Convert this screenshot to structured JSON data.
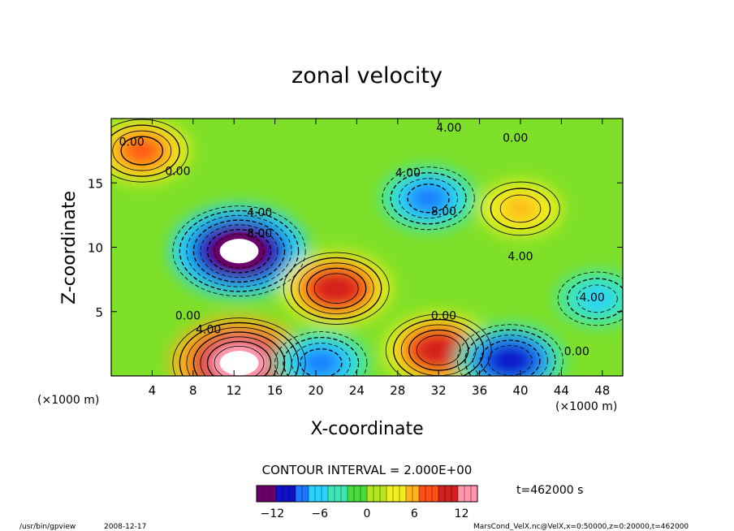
{
  "chart_data": {
    "type": "heatmap",
    "title": "zonal velocity",
    "xlabel": "X-coordinate",
    "ylabel": "Z-coordinate",
    "x_unit_left": "(×1000 m)",
    "x_unit_right": "(×1000 m)",
    "xlim": [
      0,
      50
    ],
    "ylim": [
      0,
      20
    ],
    "x_ticks": [
      4,
      8,
      12,
      16,
      20,
      24,
      28,
      32,
      36,
      40,
      44,
      48
    ],
    "y_ticks": [
      5,
      10,
      15
    ],
    "contour_interval_label": "CONTOUR INTERVAL = 2.000E+00",
    "time_label": "t=462000 s",
    "colorbar": {
      "ticks": [
        -12,
        -6,
        0,
        6,
        12
      ],
      "range": [
        -14,
        14
      ],
      "colors": [
        "#6a006a",
        "#1010c8",
        "#1e78ff",
        "#28d2ff",
        "#3ce6b4",
        "#46dc3c",
        "#b4e61e",
        "#f0f01e",
        "#ffb41e",
        "#ff5014",
        "#d21e1e",
        "#ff96aa"
      ]
    },
    "contour_labels": [
      {
        "text": "4.00",
        "x": 33,
        "y": 19.0
      },
      {
        "text": "0.00",
        "x": 39.5,
        "y": 18.2
      },
      {
        "text": "0.00",
        "x": 2.0,
        "y": 17.9
      },
      {
        "text": "0.00",
        "x": 6.5,
        "y": 15.6
      },
      {
        "text": "4.00",
        "x": 29.0,
        "y": 15.5
      },
      {
        "text": "8.00",
        "x": 32.5,
        "y": 12.5
      },
      {
        "text": "4.00",
        "x": 14.5,
        "y": 12.4
      },
      {
        "text": "8.00",
        "x": 14.5,
        "y": 10.8
      },
      {
        "text": "4.00",
        "x": 40.0,
        "y": 9.0
      },
      {
        "text": "4.00",
        "x": 47.0,
        "y": 5.8
      },
      {
        "text": "0.00",
        "x": 7.5,
        "y": 4.4
      },
      {
        "text": "0.00",
        "x": 32.5,
        "y": 4.4
      },
      {
        "text": "4.00",
        "x": 9.5,
        "y": 3.3
      },
      {
        "text": "0.00",
        "x": 45.5,
        "y": 1.6
      }
    ],
    "features": [
      {
        "x": 12.5,
        "y": 9.7,
        "value": -14,
        "desc": "strong negative core"
      },
      {
        "x": 12.5,
        "y": 1.0,
        "value": 14,
        "desc": "strong positive core"
      },
      {
        "x": 31.0,
        "y": 13.8,
        "value": -8
      },
      {
        "x": 22.0,
        "y": 6.8,
        "value": 10
      },
      {
        "x": 32.0,
        "y": 2.0,
        "value": 10
      },
      {
        "x": 40.0,
        "y": 13.0,
        "value": 6
      },
      {
        "x": 3.0,
        "y": 17.5,
        "value": 8
      },
      {
        "x": 39.0,
        "y": 1.2,
        "value": -10
      },
      {
        "x": 20.5,
        "y": 1.0,
        "value": -8
      },
      {
        "x": 47.5,
        "y": 6.0,
        "value": -6
      }
    ]
  },
  "footer": {
    "program": "/usr/bin/gpview",
    "date": "2008-12-17",
    "source": "MarsCond_VelX.nc@VelX,x=0:50000,z=0:20000,t=462000"
  }
}
